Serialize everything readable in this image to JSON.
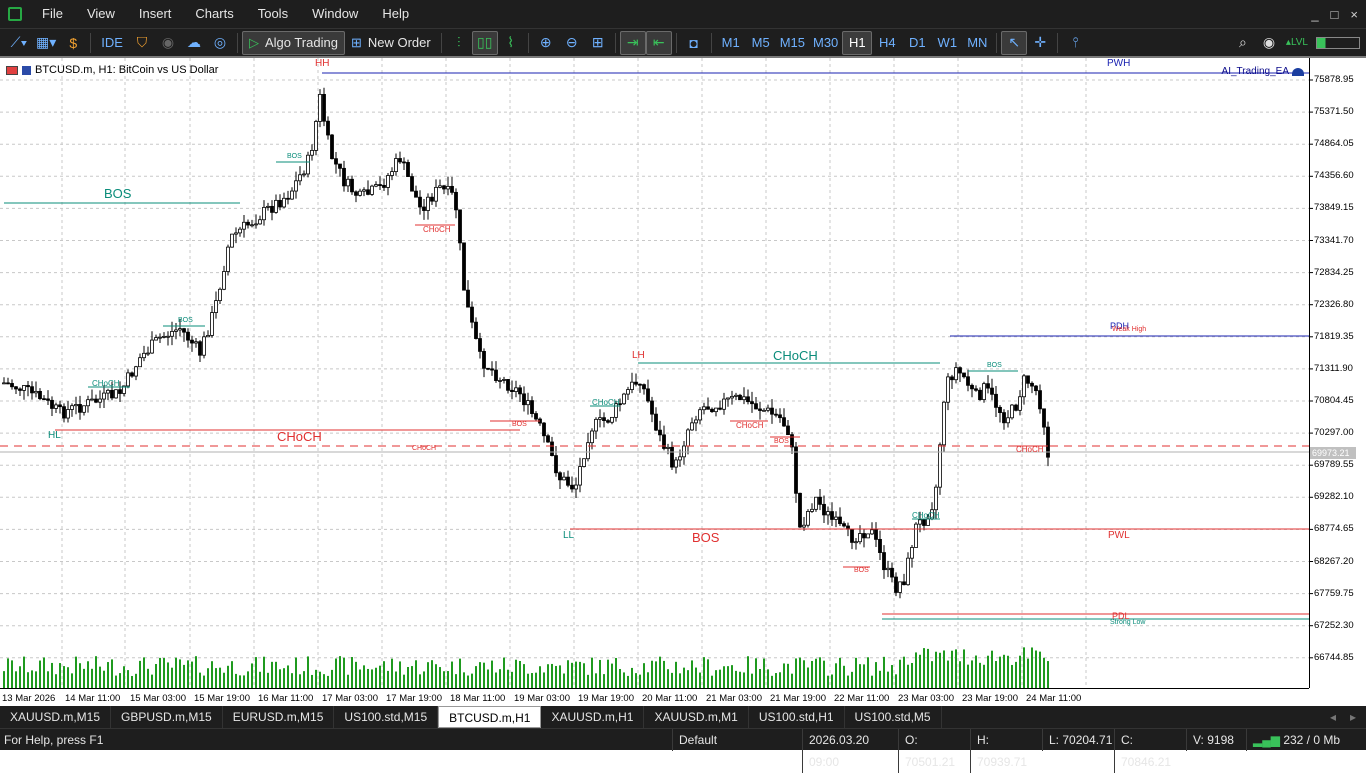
{
  "menu": {
    "items": [
      "File",
      "View",
      "Insert",
      "Charts",
      "Tools",
      "Window",
      "Help"
    ],
    "window_controls": [
      "_",
      "□",
      "×"
    ]
  },
  "toolbar": {
    "ide_label": "IDE",
    "algo_trading_label": "Algo Trading",
    "new_order_label": "New Order",
    "timeframes": [
      "M1",
      "M5",
      "M15",
      "M30",
      "H1",
      "H4",
      "D1",
      "W1",
      "MN"
    ],
    "active_timeframe": "H1"
  },
  "chart": {
    "title": "BTCUSD.m, H1:  BitCoin vs US Dollar",
    "ea_label": "AI_Trading_EA",
    "current_price": "69973.21",
    "price_ticks": [
      "75878.95",
      "75371.50",
      "74864.05",
      "74356.60",
      "73849.15",
      "73341.70",
      "72834.25",
      "72326.80",
      "71819.35",
      "71311.90",
      "70804.45",
      "70297.00",
      "69789.55",
      "69282.10",
      "68774.65",
      "68267.20",
      "67759.75",
      "67252.30",
      "66744.85"
    ],
    "time_ticks": [
      "13 Mar 2026",
      "14 Mar 11:00",
      "15 Mar 03:00",
      "15 Mar 19:00",
      "16 Mar 11:00",
      "17 Mar 03:00",
      "17 Mar 19:00",
      "18 Mar 11:00",
      "19 Mar 03:00",
      "19 Mar 19:00",
      "20 Mar 11:00",
      "21 Mar 03:00",
      "21 Mar 19:00",
      "22 Mar 11:00",
      "23 Mar 03:00",
      "23 Mar 19:00",
      "24 Mar 11:00"
    ],
    "annotations": {
      "hh": "HH",
      "lh": "LH",
      "hl": "HL",
      "ll": "LL",
      "bos": "BOS",
      "choch": "CHoCH",
      "pwh": "PWH",
      "pwl": "PWL",
      "pdh": "PDH",
      "pdl": "PDL",
      "weak_high": "Weak High",
      "strong_low": "Strong Low"
    },
    "colors": {
      "bull_line": "#0a8c7a",
      "bear_line": "#e03030",
      "blue_line": "#1a22b0",
      "candle": "#000000",
      "volume": "#1f9a1f"
    }
  },
  "tabs": [
    "XAUUSD.m,M15",
    "GBPUSD.m,M15",
    "EURUSD.m,M15",
    "US100.std,M15",
    "BTCUSD.m,H1",
    "XAUUSD.m,H1",
    "XAUUSD.m,M1",
    "US100.std,H1",
    "US100.std,M5"
  ],
  "active_tab": "BTCUSD.m,H1",
  "status": {
    "help": "For Help, press F1",
    "profile": "Default",
    "datetime": "2026.03.20 09:00",
    "open": "O: 70501.21",
    "high": "H: 70939.71",
    "low": "L: 70204.71",
    "close": "C: 70846.21",
    "volume": "V: 9198",
    "traffic": "232 / 0 Mb"
  }
}
